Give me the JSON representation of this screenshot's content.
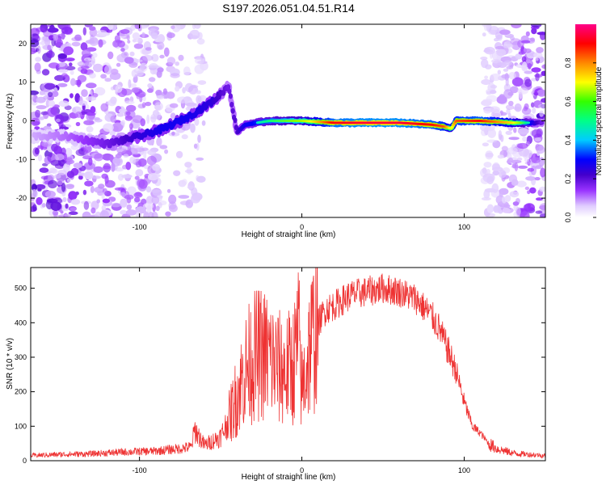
{
  "title": "S197.2026.051.04.51.R14",
  "chart_data": [
    {
      "type": "heatmap",
      "title": "S197.2026.051.04.51.R14",
      "xlabel": "Height of straight line (km)",
      "ylabel": "Frequency (Hz)",
      "xlim": [
        -167,
        150
      ],
      "ylim": [
        -25,
        25
      ],
      "xticks": [
        -100,
        0,
        100
      ],
      "yticks": [
        -20,
        -10,
        0,
        10,
        20
      ],
      "x_ticklabels": [
        "-100",
        "0",
        "100"
      ],
      "y_ticklabels": [
        "-20",
        "-10",
        "0",
        "10",
        "20"
      ],
      "colorbar": {
        "label": "Normalized spectral amplitude",
        "range": [
          0,
          1
        ],
        "ticks": [
          0.0,
          0.2,
          0.4,
          0.6,
          0.8
        ],
        "ticklabels": [
          "0.0",
          "0.2",
          "0.4",
          "0.6",
          "0.8"
        ],
        "colormap": [
          "#ffffff",
          "#e0ccff",
          "#9933ff",
          "#4400cc",
          "#0000ff",
          "#00ccff",
          "#00ff88",
          "#88ff00",
          "#ffff00",
          "#ff8800",
          "#ff0000",
          "#ff0088"
        ]
      },
      "ridge": {
        "x": [
          -165,
          -145,
          -120,
          -100,
          -85,
          -70,
          -55,
          -45,
          -40,
          -35,
          -20,
          0,
          20,
          40,
          60,
          80,
          88,
          92,
          95,
          110,
          130,
          148
        ],
        "freq": [
          -4,
          -4,
          -6,
          -4,
          -2,
          1,
          5,
          9,
          -3,
          -1,
          0,
          0,
          -0.5,
          -0.5,
          -0.5,
          -1,
          -1.5,
          -2,
          0,
          0,
          -0.5,
          -0.5
        ],
        "amplitude": [
          0.15,
          0.2,
          0.3,
          0.4,
          0.45,
          0.45,
          0.4,
          0.3,
          0.35,
          0.45,
          0.55,
          0.65,
          0.92,
          0.95,
          0.95,
          0.9,
          0.85,
          0.7,
          0.85,
          0.9,
          0.75,
          0.3
        ]
      }
    },
    {
      "type": "line",
      "xlabel": "Height of straight line (km)",
      "ylabel": "SNR (10 * v/v)",
      "xlim": [
        -167,
        150
      ],
      "ylim": [
        0,
        560
      ],
      "xticks": [
        -100,
        0,
        100
      ],
      "yticks": [
        0,
        100,
        200,
        300,
        400,
        500
      ],
      "x_ticklabels": [
        "-100",
        "0",
        "100"
      ],
      "y_ticklabels": [
        "0",
        "100",
        "200",
        "300",
        "400",
        "500"
      ],
      "color": "#ee3333",
      "series": [
        {
          "name": "SNR",
          "x": [
            -167,
            -150,
            -130,
            -110,
            -90,
            -75,
            -68,
            -66,
            -60,
            -50,
            -45,
            -40,
            -35,
            -30,
            -25,
            -20,
            -15,
            -10,
            -5,
            -2,
            0,
            5,
            10,
            15,
            20,
            30,
            40,
            50,
            60,
            70,
            80,
            85,
            90,
            95,
            100,
            105,
            110,
            115,
            120,
            130,
            140,
            150
          ],
          "y": [
            15,
            18,
            20,
            25,
            28,
            35,
            40,
            90,
            45,
            70,
            120,
            190,
            260,
            300,
            310,
            300,
            270,
            260,
            280,
            360,
            200,
            330,
            400,
            440,
            450,
            480,
            490,
            500,
            490,
            470,
            420,
            380,
            320,
            260,
            170,
            100,
            80,
            50,
            35,
            22,
            18,
            15
          ]
        }
      ]
    }
  ]
}
